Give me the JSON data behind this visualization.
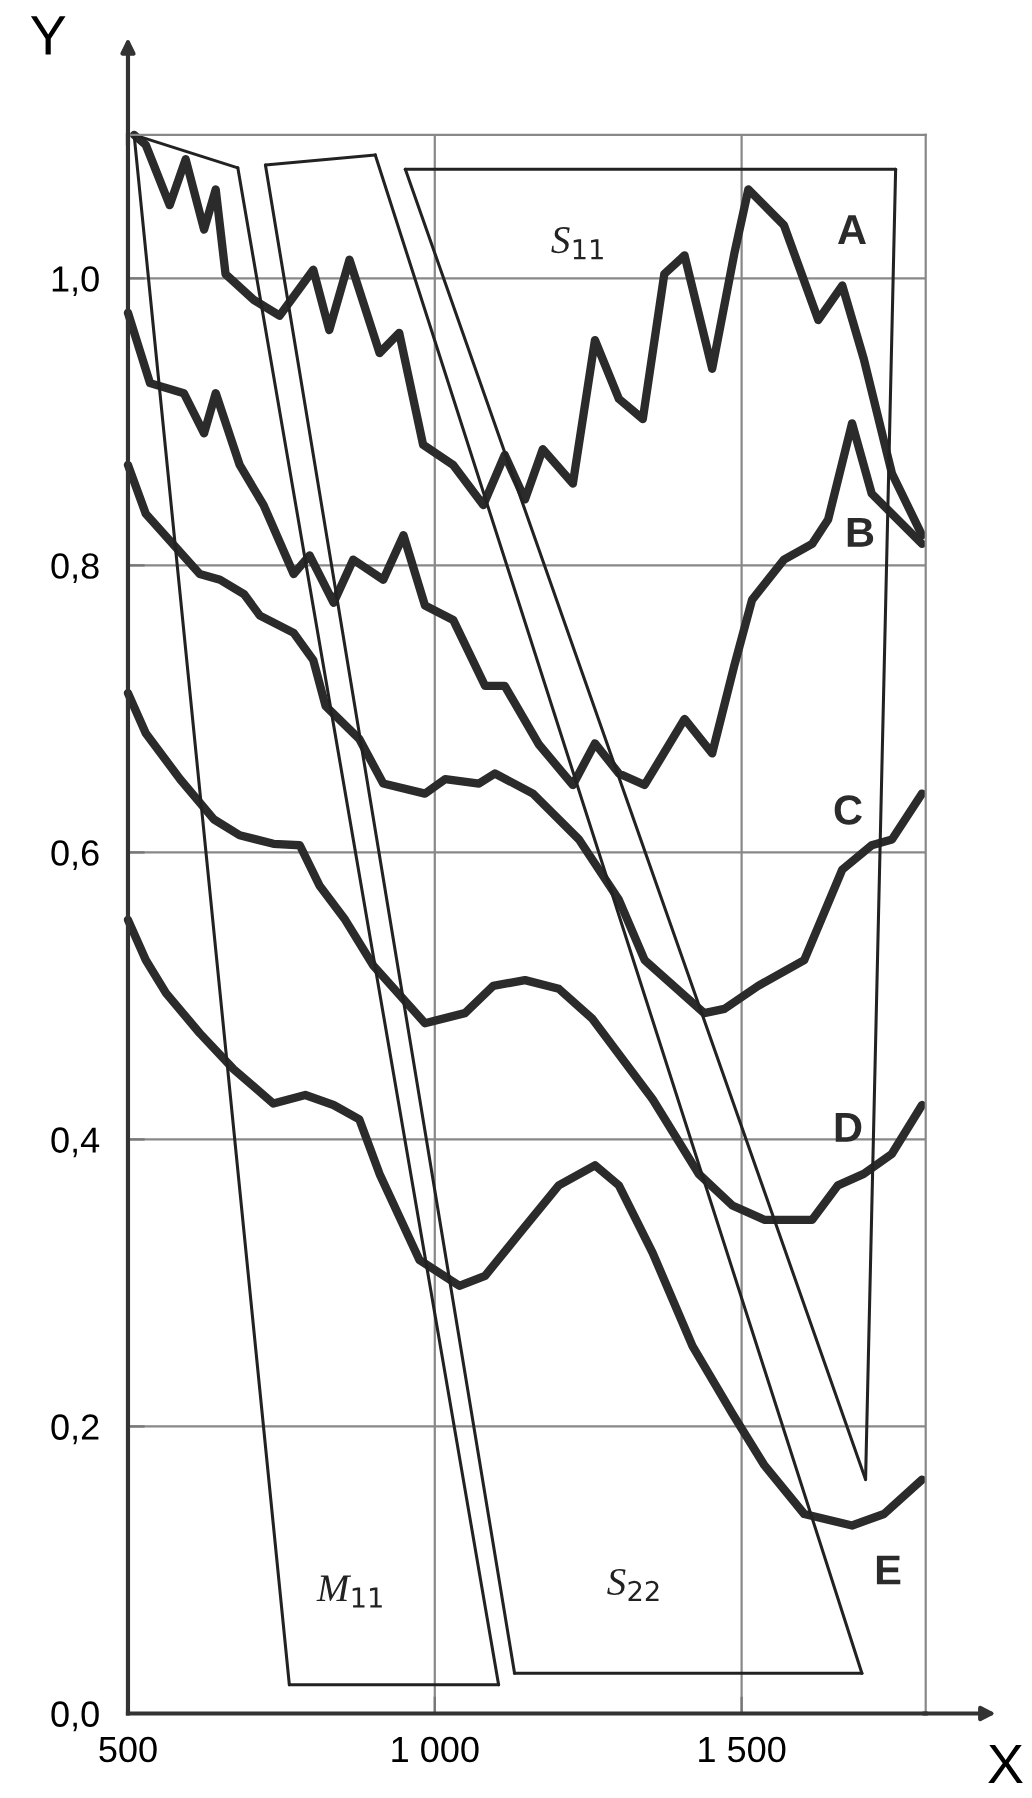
{
  "chart_data": {
    "type": "line",
    "xlabel": "X",
    "ylabel": "Y",
    "xlim": [
      500,
      1800
    ],
    "ylim": [
      0,
      1.1
    ],
    "xticks": [
      500,
      {
        "value": 1000,
        "label": "1 000"
      },
      {
        "value": 1500,
        "label": "1 500"
      }
    ],
    "yticks": [
      {
        "value": 0,
        "label": "0,0"
      },
      {
        "value": 0.2,
        "label": "0,2"
      },
      {
        "value": 0.4,
        "label": "0,4"
      },
      {
        "value": 0.6,
        "label": "0,6"
      },
      {
        "value": 0.8,
        "label": "0,8"
      },
      {
        "value": 1.0,
        "label": "1,0"
      }
    ],
    "grid": true,
    "marker": "none",
    "line_style": "solid",
    "series": [
      {
        "name": "A",
        "color": "#2b2b2b",
        "x": [
          510,
          529,
          568,
          594,
          624,
          643,
          659,
          705,
          747,
          802,
          828,
          861,
          910,
          942,
          981,
          1030,
          1079,
          1114,
          1147,
          1176,
          1225,
          1261,
          1300,
          1339,
          1374,
          1407,
          1452,
          1488,
          1511,
          1569,
          1625,
          1664,
          1699,
          1745,
          1794
        ],
        "values": [
          1.1,
          1.093,
          1.051,
          1.083,
          1.034,
          1.062,
          1.003,
          0.985,
          0.974,
          1.006,
          0.964,
          1.013,
          0.948,
          0.962,
          0.884,
          0.87,
          0.842,
          0.877,
          0.846,
          0.881,
          0.857,
          0.957,
          0.916,
          0.902,
          1.003,
          1.016,
          0.937,
          1.017,
          1.062,
          1.037,
          0.971,
          0.995,
          0.944,
          0.864,
          0.821
        ]
      },
      {
        "name": "B",
        "color": "#2b2b2b",
        "x": [
          500,
          536,
          591,
          624,
          643,
          682,
          721,
          770,
          796,
          835,
          867,
          916,
          949,
          984,
          1030,
          1082,
          1114,
          1170,
          1225,
          1261,
          1300,
          1342,
          1407,
          1452,
          1488,
          1517,
          1569,
          1615,
          1641,
          1680,
          1712,
          1794
        ],
        "values": [
          0.976,
          0.927,
          0.92,
          0.892,
          0.92,
          0.87,
          0.842,
          0.794,
          0.807,
          0.774,
          0.804,
          0.79,
          0.821,
          0.772,
          0.762,
          0.716,
          0.716,
          0.675,
          0.647,
          0.676,
          0.655,
          0.647,
          0.693,
          0.669,
          0.73,
          0.776,
          0.804,
          0.815,
          0.832,
          0.899,
          0.85,
          0.815
        ]
      },
      {
        "name": "C",
        "color": "#2b2b2b",
        "x": [
          500,
          529,
          575,
          617,
          650,
          689,
          715,
          770,
          802,
          822,
          877,
          916,
          984,
          1017,
          1072,
          1098,
          1160,
          1235,
          1300,
          1342,
          1439,
          1472,
          1527,
          1602,
          1664,
          1712,
          1745,
          1794
        ],
        "values": [
          0.87,
          0.836,
          0.814,
          0.794,
          0.79,
          0.78,
          0.765,
          0.753,
          0.734,
          0.702,
          0.679,
          0.648,
          0.641,
          0.651,
          0.648,
          0.655,
          0.641,
          0.609,
          0.567,
          0.525,
          0.488,
          0.491,
          0.507,
          0.525,
          0.588,
          0.605,
          0.609,
          0.641
        ]
      },
      {
        "name": "D",
        "color": "#2b2b2b",
        "x": [
          500,
          529,
          585,
          640,
          682,
          737,
          780,
          812,
          854,
          900,
          984,
          1049,
          1095,
          1147,
          1202,
          1257,
          1355,
          1430,
          1485,
          1537,
          1615,
          1657,
          1699,
          1745,
          1794
        ],
        "values": [
          0.711,
          0.683,
          0.651,
          0.623,
          0.612,
          0.606,
          0.605,
          0.577,
          0.553,
          0.521,
          0.481,
          0.488,
          0.507,
          0.511,
          0.505,
          0.484,
          0.428,
          0.376,
          0.354,
          0.344,
          0.344,
          0.368,
          0.376,
          0.39,
          0.424
        ]
      },
      {
        "name": "E",
        "color": "#2b2b2b",
        "x": [
          500,
          529,
          562,
          617,
          672,
          737,
          789,
          835,
          877,
          910,
          975,
          1040,
          1082,
          1137,
          1202,
          1261,
          1300,
          1355,
          1420,
          1485,
          1537,
          1602,
          1680,
          1732,
          1794
        ],
        "values": [
          0.553,
          0.525,
          0.502,
          0.474,
          0.449,
          0.425,
          0.431,
          0.424,
          0.414,
          0.376,
          0.316,
          0.298,
          0.305,
          0.334,
          0.368,
          0.382,
          0.368,
          0.321,
          0.256,
          0.209,
          0.173,
          0.139,
          0.131,
          0.139,
          0.163
        ]
      },
      {
        "color": "#222222",
        "x": [
          510,
          679
        ],
        "values": [
          1.1,
          1.077
        ]
      },
      {
        "color": "#222222",
        "x": [
          679,
          1104
        ],
        "values": [
          1.077,
          0.02
        ]
      },
      {
        "color": "#222222",
        "x": [
          763,
          1104
        ],
        "values": [
          0.02,
          0.02
        ]
      },
      {
        "color": "#222222",
        "x": [
          510,
          763
        ],
        "values": [
          1.1,
          0.02
        ]
      },
      {
        "color": "#222222",
        "x": [
          724,
          903
        ],
        "values": [
          1.079,
          1.086
        ]
      },
      {
        "color": "#222222",
        "x": [
          903,
          1696
        ],
        "values": [
          1.086,
          0.028
        ]
      },
      {
        "color": "#222222",
        "x": [
          1130,
          1696
        ],
        "values": [
          0.028,
          0.028
        ]
      },
      {
        "color": "#222222",
        "x": [
          724,
          1130
        ],
        "values": [
          1.079,
          0.028
        ]
      },
      {
        "color": "#222222",
        "x": [
          952,
          1751
        ],
        "values": [
          1.076,
          1.076
        ]
      },
      {
        "color": "#222222",
        "x": [
          1702,
          1751
        ],
        "values": [
          0.163,
          1.076
        ]
      },
      {
        "color": "#222222",
        "x": [
          952,
          1702
        ],
        "values": [
          1.076,
          0.163
        ]
      }
    ],
    "annotations": [
      "S$_{11}$",
      "M$_{11}$",
      "S$_{22}$"
    ]
  }
}
